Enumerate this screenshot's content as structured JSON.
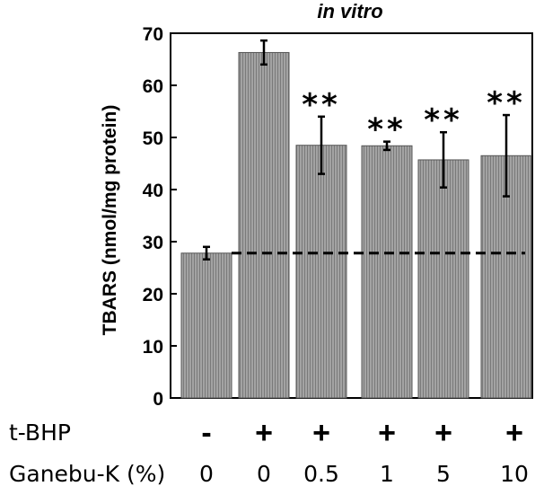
{
  "chart_data": {
    "type": "bar",
    "title": "in vitro",
    "xlabel": "",
    "ylabel": "TBARS (nmol/mg protein)",
    "ylim": [
      0,
      70
    ],
    "yticks": [
      "0",
      "10",
      "20",
      "30",
      "40",
      "50",
      "60",
      "70"
    ],
    "series": [
      {
        "values": [
          27.8,
          66.3,
          48.5,
          48.4,
          45.7,
          46.5
        ],
        "error": [
          1.2,
          2.3,
          5.5,
          0.8,
          5.3,
          7.8
        ]
      }
    ],
    "significance": [
      "",
      "",
      "**",
      "**",
      "**",
      "**"
    ],
    "reference_line": {
      "value": 27.8,
      "style": "dashed"
    },
    "bar_color": "#999999",
    "grid": false
  },
  "conditions": {
    "tbhp": {
      "label": "t-BHP",
      "values": [
        "-",
        "+",
        "+",
        "+",
        "+",
        "+"
      ]
    },
    "ganebu": {
      "label": "Ganebu-K (%)",
      "values": [
        "0",
        "0",
        "0.5",
        "1",
        "5",
        "10"
      ]
    }
  }
}
